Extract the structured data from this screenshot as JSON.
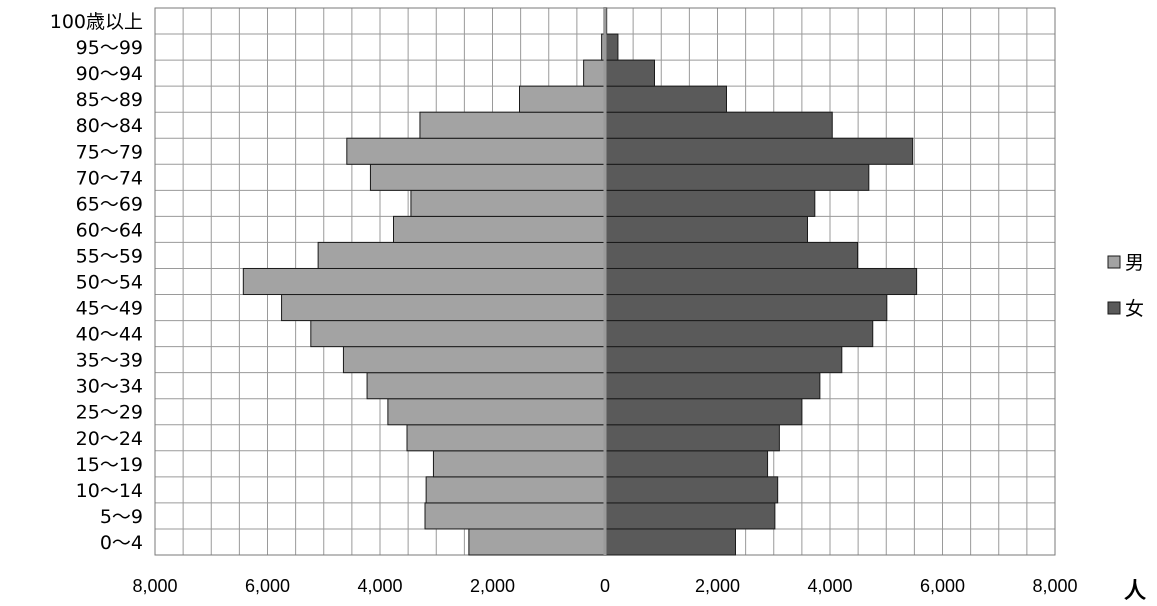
{
  "chart_data": {
    "type": "bar",
    "orientation": "horizontal",
    "layout": "population-pyramid",
    "categories": [
      "0〜4",
      "5〜9",
      "10〜14",
      "15〜19",
      "20〜24",
      "25〜29",
      "30〜34",
      "35〜39",
      "40〜44",
      "45〜49",
      "50〜54",
      "55〜59",
      "60〜64",
      "65〜69",
      "70〜74",
      "75〜79",
      "80〜84",
      "85〜89",
      "90〜94",
      "95〜99",
      "100歳以上"
    ],
    "series": [
      {
        "name": "男",
        "color": "#a3a3a3",
        "side": "left",
        "values": [
          2420,
          3200,
          3180,
          3050,
          3520,
          3860,
          4230,
          4650,
          5230,
          5750,
          6430,
          5100,
          3760,
          3450,
          4170,
          4590,
          3290,
          1520,
          380,
          60,
          20
        ]
      },
      {
        "name": "女",
        "color": "#5a5a5a",
        "side": "right",
        "values": [
          2320,
          3020,
          3070,
          2890,
          3100,
          3500,
          3820,
          4210,
          4760,
          5010,
          5540,
          4490,
          3600,
          3730,
          4690,
          5470,
          4040,
          2160,
          880,
          230,
          30
        ]
      }
    ],
    "xlim": [
      -8000,
      8000
    ],
    "x_ticks": [
      -8000,
      -6000,
      -4000,
      -2000,
      0,
      2000,
      4000,
      6000,
      8000
    ],
    "x_tick_labels": [
      "8,000",
      "6,000",
      "4,000",
      "2,000",
      "0",
      "2,000",
      "4,000",
      "6,000",
      "8,000"
    ],
    "minor_gridline_step": 500,
    "grid": true,
    "legend_position": "right",
    "unit_label": "人"
  }
}
